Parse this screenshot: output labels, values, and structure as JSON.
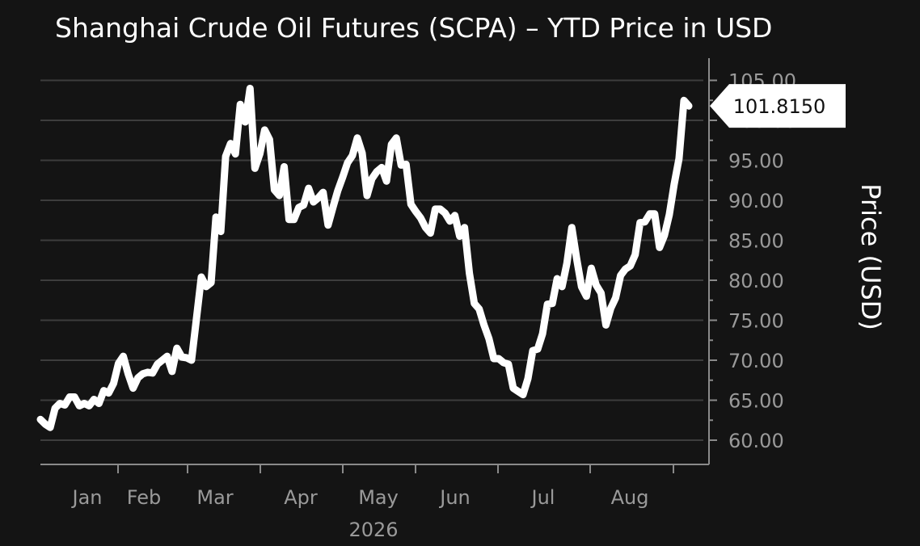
{
  "colors": {
    "background": "#141414",
    "grid": "#3d3d3d",
    "axis": "#8a8a8a",
    "line": "#ffffff",
    "text": "#ffffff",
    "tick_text": "#9a9a9a"
  },
  "chart_data": {
    "type": "line",
    "title": "Shanghai Crude Oil Futures (SCPA) – YTD Price in USD",
    "ylabel": "Price (USD)",
    "xlabel": "2026",
    "ylim": [
      57,
      107.5
    ],
    "yticks": [
      "60.00",
      "65.00",
      "70.00",
      "75.00",
      "80.00",
      "85.00",
      "90.00",
      "95.00",
      "100.00",
      "105.00"
    ],
    "months": [
      "Jan",
      "Feb",
      "Mar",
      "Apr",
      "May",
      "Jun",
      "Jul",
      "Aug"
    ],
    "grid": true,
    "last_value_label": "101.8150",
    "series": [
      {
        "values": [
          62.6,
          62.0,
          61.6,
          64.0,
          64.6,
          64.4,
          65.4,
          65.4,
          64.3,
          64.6,
          64.3,
          65.1,
          64.6,
          66.2,
          65.9,
          67.1,
          69.6,
          70.5,
          68.3,
          66.5,
          67.8,
          68.3,
          68.5,
          68.4,
          69.5,
          70.0,
          70.5,
          68.6,
          71.5,
          70.4,
          70.3,
          70.0,
          75.2,
          80.4,
          79.2,
          79.7,
          87.9,
          86.1,
          95.5,
          97.1,
          95.8,
          102.0,
          99.8,
          104.0,
          94.0,
          95.8,
          98.8,
          97.6,
          91.3,
          90.6,
          94.2,
          87.6,
          87.6,
          89.1,
          89.4,
          91.5,
          89.8,
          90.3,
          91.0,
          86.9,
          89.1,
          91.2,
          92.9,
          94.7,
          95.6,
          97.8,
          95.9,
          90.6,
          92.7,
          93.6,
          94.1,
          92.4,
          97.0,
          97.8,
          94.4,
          94.5,
          89.5,
          88.6,
          87.8,
          86.6,
          85.9,
          88.9,
          88.9,
          88.4,
          87.4,
          88.1,
          85.5,
          86.6,
          80.9,
          77.1,
          76.4,
          74.4,
          72.7,
          70.2,
          70.2,
          69.7,
          69.5,
          66.5,
          66.1,
          65.7,
          67.7,
          71.2,
          71.4,
          73.3,
          77.0,
          77.1,
          80.2,
          79.2,
          82.1,
          86.6,
          82.7,
          79.2,
          78.0,
          81.5,
          79.4,
          78.4,
          74.4,
          76.5,
          77.8,
          80.6,
          81.4,
          81.8,
          83.2,
          87.2,
          87.3,
          88.3,
          88.3,
          84.1,
          85.6,
          88.2,
          92.0,
          95.2,
          102.5,
          101.8
        ]
      }
    ]
  }
}
